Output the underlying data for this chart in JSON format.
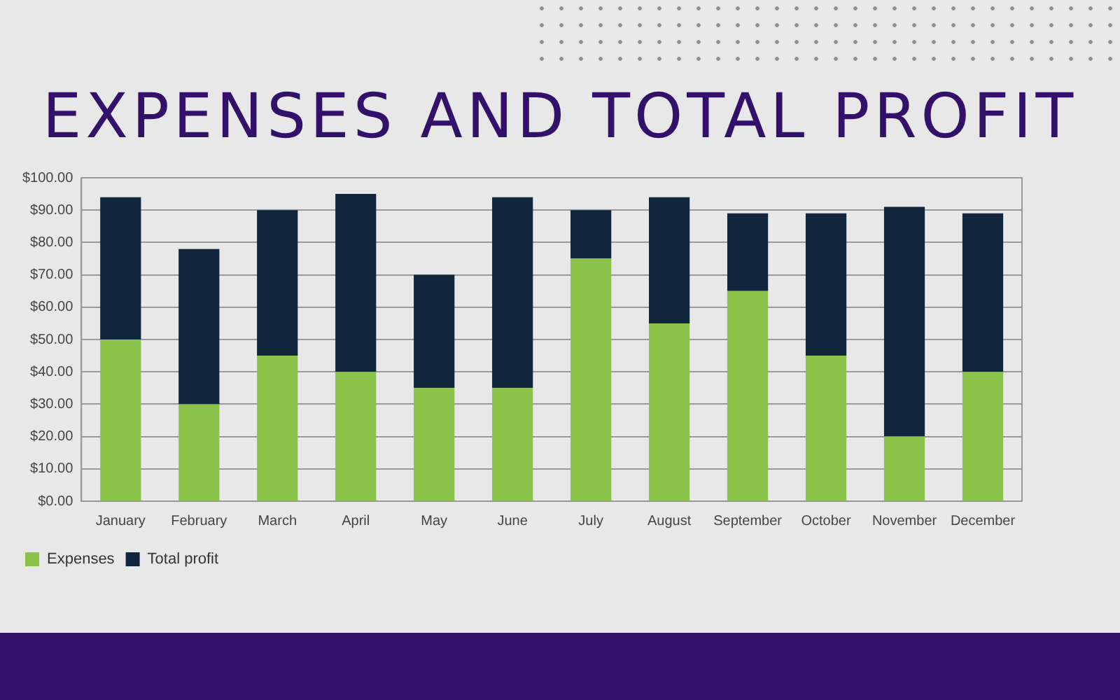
{
  "chart_data": {
    "type": "bar",
    "title": "EXPENSES AND TOTAL PROFIT",
    "stacked": true,
    "grid": "y",
    "legend": "bottom left",
    "categories": [
      "January",
      "February",
      "March",
      "April",
      "May",
      "June",
      "July",
      "August",
      "September",
      "October",
      "November",
      "December"
    ],
    "series": [
      {
        "name": "Expenses",
        "color": "#8bc34a",
        "values": [
          50,
          30,
          45,
          40,
          35,
          35,
          75,
          55,
          65,
          45,
          20,
          40
        ]
      },
      {
        "name": "Total profit",
        "color": "#11263d",
        "values": [
          44,
          48,
          45,
          55,
          35,
          59,
          15,
          39,
          24,
          44,
          71,
          49
        ]
      }
    ],
    "ylim": [
      0,
      100
    ],
    "yticks": [
      {
        "value": 0,
        "label": "$0.00"
      },
      {
        "value": 10,
        "label": "$10.00"
      },
      {
        "value": 20,
        "label": "$20.00"
      },
      {
        "value": 30,
        "label": "$30.00"
      },
      {
        "value": 40,
        "label": "$40.00"
      },
      {
        "value": 50,
        "label": "$50.00"
      },
      {
        "value": 60,
        "label": "$60.00"
      },
      {
        "value": 70,
        "label": "$70.00"
      },
      {
        "value": 80,
        "label": "$80.00"
      },
      {
        "value": 90,
        "label": "$90.00"
      },
      {
        "value": 100,
        "label": "$100.00"
      }
    ]
  }
}
